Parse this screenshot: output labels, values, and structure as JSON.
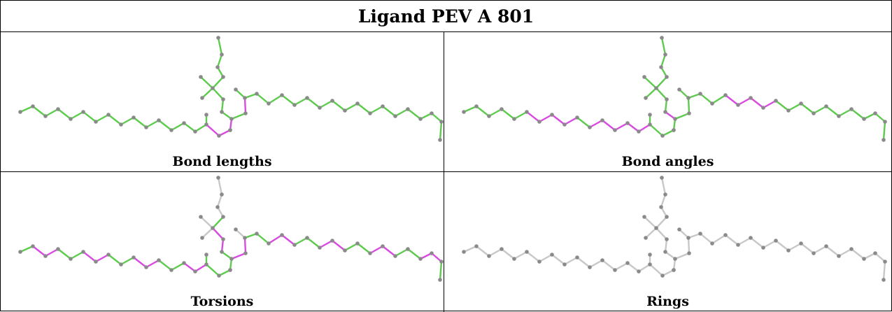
{
  "title": "Ligand PEV A 801",
  "panels": [
    {
      "caption": "Bond lengths",
      "scheme": "lengths"
    },
    {
      "caption": "Bond angles",
      "scheme": "angles"
    },
    {
      "caption": "Torsions",
      "scheme": "torsions"
    },
    {
      "caption": "Rings",
      "scheme": "rings"
    }
  ],
  "colors": {
    "ok": "#5ecb4f",
    "outlier": "#d84be0",
    "neutral": "#c8c8c8",
    "atom": "#8a8a8a",
    "border": "#000000"
  }
}
